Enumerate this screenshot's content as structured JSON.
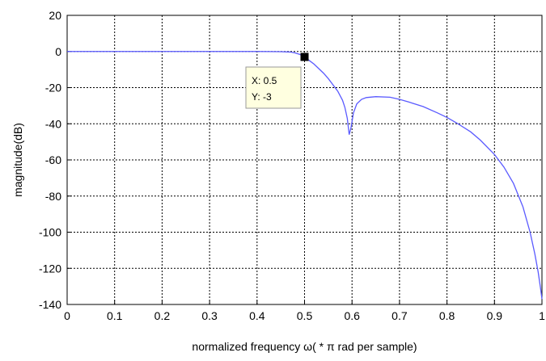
{
  "chart_data": {
    "type": "line",
    "title": "",
    "xlabel": "normalized frequency ω( * π rad per sample)",
    "ylabel": "magnitude(dB)",
    "xlim": [
      0,
      1
    ],
    "ylim": [
      -140,
      20
    ],
    "x_ticks": [
      0,
      0.1,
      0.2,
      0.3,
      0.4,
      0.5,
      0.6,
      0.7,
      0.8,
      0.9,
      1
    ],
    "x_tick_labels": [
      "0",
      "0.1",
      "0.2",
      "0.3",
      "0.4",
      "0.5",
      "0.6",
      "0.7",
      "0.8",
      "0.9",
      "1"
    ],
    "y_ticks": [
      20,
      0,
      -20,
      -40,
      -60,
      -80,
      -100,
      -120,
      -140
    ],
    "y_tick_labels": [
      "20",
      "0",
      "-20",
      "-40",
      "-60",
      "-80",
      "-100",
      "-120",
      "-140"
    ],
    "grid": true,
    "grid_style": "dotted",
    "series_color": "#5a5aff",
    "series": [
      {
        "x": [
          0,
          0.1,
          0.2,
          0.3,
          0.4,
          0.45,
          0.47,
          0.48,
          0.49,
          0.5,
          0.51,
          0.52,
          0.53,
          0.54,
          0.55,
          0.56,
          0.57,
          0.58,
          0.585,
          0.59,
          0.594,
          0.598,
          0.603,
          0.61,
          0.62,
          0.63,
          0.65,
          0.68,
          0.7,
          0.72,
          0.75,
          0.78,
          0.8,
          0.82,
          0.85,
          0.87,
          0.9,
          0.92,
          0.94,
          0.96,
          0.975,
          0.985,
          0.992,
          0.997,
          1.0
        ],
        "y": [
          0,
          0,
          0,
          0,
          0,
          -0.1,
          -0.3,
          -0.8,
          -1.6,
          -3,
          -5,
          -7,
          -9.5,
          -12,
          -15,
          -18.5,
          -22,
          -27,
          -31,
          -37,
          -46,
          -42,
          -34,
          -29,
          -26.5,
          -25.5,
          -25,
          -25.3,
          -26.5,
          -28,
          -30.5,
          -34,
          -36.5,
          -39.5,
          -44.5,
          -49,
          -57,
          -64,
          -73,
          -86,
          -100,
          -112,
          -122,
          -131,
          -137
        ]
      }
    ],
    "datatip": {
      "x_label": "X: 0.5",
      "y_label": "Y: -3",
      "x": 0.5,
      "y": -3
    }
  }
}
